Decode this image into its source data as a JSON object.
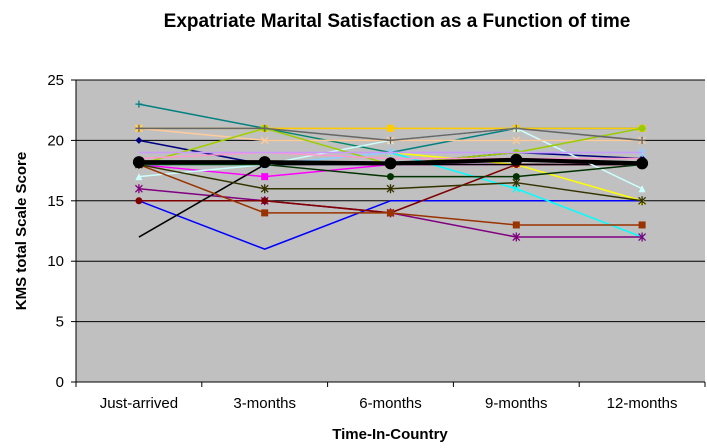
{
  "chart_data": {
    "type": "line",
    "title": "Expatriate Marital Satisfaction as a Function of time",
    "xlabel": "Time-In-Country",
    "ylabel": "KMS total Scale Score",
    "categories": [
      "Just-arrived",
      "3-months",
      "6-months",
      "9-months",
      "12-months"
    ],
    "ylim": [
      0,
      25
    ],
    "yticks": [
      0,
      5,
      10,
      15,
      20,
      25
    ],
    "grid": true,
    "legend": "none",
    "plot_background": "#c0c0c0",
    "series": [
      {
        "color": "#0000ff",
        "marker": "none",
        "values": [
          15,
          11,
          15,
          15,
          15
        ]
      },
      {
        "color": "#000080",
        "marker": "diamond",
        "values": [
          20,
          18,
          18,
          19,
          18.5
        ]
      },
      {
        "color": "#ff00ff",
        "marker": "square",
        "values": [
          18,
          17,
          18,
          18,
          18
        ]
      },
      {
        "color": "#ffff00",
        "marker": "triangle",
        "values": [
          18,
          21,
          19,
          18,
          15
        ]
      },
      {
        "color": "#00ffff",
        "marker": "x",
        "values": [
          18,
          18,
          19,
          16,
          12
        ]
      },
      {
        "color": "#800080",
        "marker": "star",
        "values": [
          16,
          15,
          14,
          12,
          12
        ]
      },
      {
        "color": "#800000",
        "marker": "circle",
        "values": [
          15,
          15,
          14,
          18,
          18
        ]
      },
      {
        "color": "#008080",
        "marker": "plus",
        "values": [
          23,
          21,
          19,
          21,
          21
        ]
      },
      {
        "color": "#000000",
        "marker": "none",
        "values": [
          12,
          18,
          18,
          18,
          18
        ]
      },
      {
        "color": "#ffcc00",
        "marker": "square",
        "values": [
          21,
          21,
          21,
          21,
          21
        ]
      },
      {
        "color": "#ccffff",
        "marker": "triangle",
        "values": [
          17,
          18,
          20,
          21,
          16
        ]
      },
      {
        "color": "#ffcc99",
        "marker": "x",
        "values": [
          21,
          20,
          20,
          20,
          20
        ]
      },
      {
        "color": "#99ccff",
        "marker": "star",
        "values": [
          18,
          18,
          19,
          19,
          19
        ]
      },
      {
        "color": "#99cc00",
        "marker": "circle",
        "values": [
          18,
          21,
          18,
          19,
          21
        ]
      },
      {
        "color": "#666666",
        "marker": "plus",
        "values": [
          21,
          21,
          20,
          21,
          20
        ]
      },
      {
        "color": "#993300",
        "marker": "square",
        "values": [
          18,
          14,
          14,
          13,
          13
        ]
      },
      {
        "color": "#333300",
        "marker": "star",
        "values": [
          18,
          16,
          16,
          16.5,
          15
        ]
      },
      {
        "color": "#003300",
        "marker": "circle",
        "values": [
          18,
          18,
          17,
          17,
          18
        ]
      },
      {
        "color": "#ff99cc",
        "marker": "none",
        "values": [
          18.5,
          19,
          18.5,
          18.5,
          18.5
        ]
      },
      {
        "color": "#cc99ff",
        "marker": "none",
        "values": [
          19,
          19,
          19,
          19,
          19
        ]
      },
      {
        "color": "#000000",
        "marker": "big-circle",
        "bold": true,
        "values": [
          18.2,
          18.2,
          18.1,
          18.4,
          18.1
        ]
      }
    ]
  }
}
